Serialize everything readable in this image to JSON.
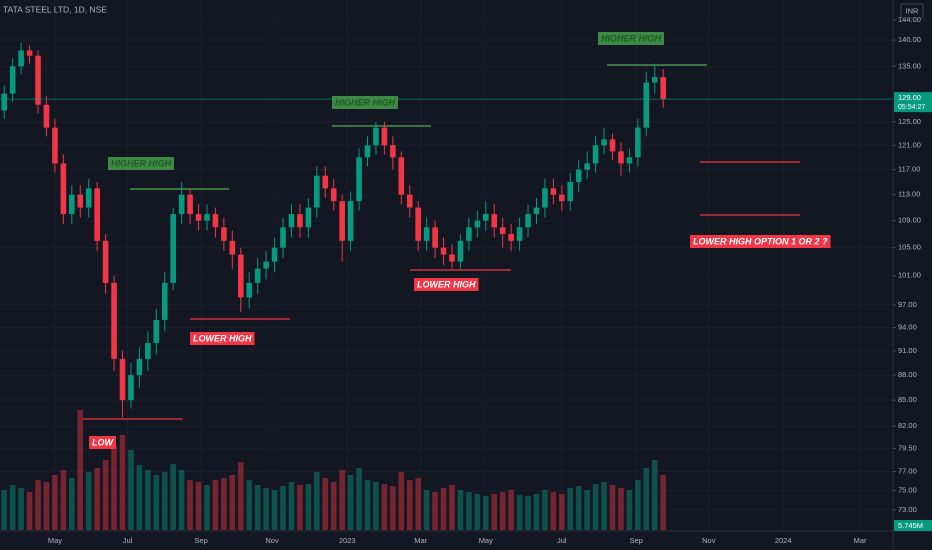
{
  "chart_data": {
    "type": "candlestick",
    "title": "TATA STEEL LTD, 1D, NSE",
    "currency": "INR",
    "price_label": "129.00",
    "countdown": "05:54:27",
    "volume_label": "5.745M",
    "log_scale": true,
    "grid": true,
    "up_color": "#089981",
    "down_color": "#f23645",
    "ylim": [
      71,
      148
    ],
    "yticks": [
      {
        "value": 144,
        "label": "144.00"
      },
      {
        "value": 140,
        "label": "140.00"
      },
      {
        "value": 135,
        "label": "135.00"
      },
      {
        "value": 125,
        "label": "125.00"
      },
      {
        "value": 121,
        "label": "121.00"
      },
      {
        "value": 117,
        "label": "117.00"
      },
      {
        "value": 113,
        "label": "113.00"
      },
      {
        "value": 109,
        "label": "109.00"
      },
      {
        "value": 105,
        "label": "105.00"
      },
      {
        "value": 101,
        "label": "101.00"
      },
      {
        "value": 97,
        "label": "97.00"
      },
      {
        "value": 94,
        "label": "94.00"
      },
      {
        "value": 91,
        "label": "91.00"
      },
      {
        "value": 88,
        "label": "88.00"
      },
      {
        "value": 85,
        "label": "85.00"
      },
      {
        "value": 82,
        "label": "82.00"
      },
      {
        "value": 79.5,
        "label": "79.50"
      },
      {
        "value": 77,
        "label": "77.00"
      },
      {
        "value": 75,
        "label": "75.00"
      },
      {
        "value": 73,
        "label": "73.00"
      }
    ],
    "xlim": [
      0,
      105.7
    ],
    "xticks": [
      {
        "value": 6.5,
        "label": "May"
      },
      {
        "value": 15.1,
        "label": "Jul"
      },
      {
        "value": 23.8,
        "label": "Sep"
      },
      {
        "value": 32.2,
        "label": "Nov"
      },
      {
        "value": 41.1,
        "label": "2023"
      },
      {
        "value": 49.8,
        "label": "Mar"
      },
      {
        "value": 57.5,
        "label": "May"
      },
      {
        "value": 66.5,
        "label": "Jul"
      },
      {
        "value": 75.3,
        "label": "Sep"
      },
      {
        "value": 83.9,
        "label": "Nov"
      },
      {
        "value": 92.7,
        "label": "2024"
      },
      {
        "value": 101.8,
        "label": "Mar"
      }
    ],
    "open": [
      127,
      130,
      135,
      138,
      137,
      128,
      124,
      118,
      110,
      113,
      111,
      114,
      106,
      100,
      90,
      85,
      88,
      90,
      92,
      95,
      100,
      110,
      113,
      110,
      109,
      110,
      108,
      106,
      104,
      98,
      100,
      102,
      103,
      105,
      108,
      110,
      108,
      111,
      116,
      114,
      112,
      106,
      112,
      119,
      121,
      124,
      121,
      119,
      113,
      111,
      106,
      108,
      105,
      104,
      103,
      106,
      108,
      109,
      110,
      108,
      107,
      106,
      108,
      110,
      111,
      114,
      113,
      112,
      115,
      117,
      118,
      121,
      122,
      120,
      118,
      119,
      124,
      132,
      133
    ],
    "high": [
      131.5,
      136.5,
      139.5,
      139,
      138,
      129.5,
      125.5,
      119.5,
      114.5,
      114.5,
      115.5,
      115,
      107,
      101,
      91,
      89.5,
      91.5,
      93.5,
      96.5,
      101.5,
      111,
      115,
      114,
      111.5,
      111.5,
      111,
      109.5,
      107.5,
      105,
      101.5,
      103.5,
      104.5,
      106.5,
      109.5,
      111.5,
      111.5,
      112.5,
      117.5,
      117.5,
      115.5,
      113,
      113.5,
      120.5,
      122.5,
      125,
      125,
      122.5,
      120,
      114.5,
      112,
      109.5,
      109,
      106.5,
      105.5,
      107,
      109.5,
      110.5,
      112,
      111.5,
      109.5,
      108.5,
      109.5,
      111.5,
      112.5,
      115.5,
      115.5,
      114.5,
      116.5,
      118.5,
      120,
      122.5,
      124,
      123,
      121.5,
      120.5,
      125.5,
      134,
      135.5,
      134.5
    ],
    "low": [
      125.5,
      128.5,
      133.5,
      135.5,
      126.5,
      122.5,
      116.5,
      108.5,
      108.5,
      109.5,
      109.5,
      104.5,
      98.5,
      88.5,
      83,
      84,
      86.5,
      88.5,
      90.5,
      93.5,
      99,
      108.5,
      108.5,
      107.5,
      107.5,
      106.5,
      104.5,
      102,
      96,
      96.5,
      98.5,
      100.5,
      101.5,
      103.5,
      106.5,
      106.5,
      106.5,
      109.5,
      112.5,
      110.5,
      103,
      104.5,
      110.5,
      117.5,
      119.5,
      119.5,
      117,
      111.5,
      109.5,
      104.5,
      104.5,
      103.5,
      102.5,
      102,
      102,
      104.5,
      106.5,
      107.5,
      106.5,
      105,
      104.5,
      104.5,
      106.5,
      108.5,
      109.5,
      111.5,
      110.5,
      110.5,
      113.5,
      115.5,
      116.5,
      119.5,
      118.5,
      116,
      116.5,
      117.5,
      122.5,
      130,
      127.5
    ],
    "close": [
      130,
      135,
      138,
      137,
      128,
      124,
      118,
      110,
      113,
      111,
      114,
      106,
      100,
      90,
      85,
      88,
      90,
      92,
      95,
      100,
      110,
      113,
      110,
      109,
      110,
      108,
      106,
      104,
      98,
      100,
      102,
      103,
      105,
      108,
      110,
      108,
      111,
      116,
      114,
      112,
      106,
      112,
      119,
      121,
      124,
      121,
      119,
      113,
      111,
      106,
      108,
      105,
      104,
      103,
      106,
      108,
      109,
      110,
      108,
      107,
      106,
      108,
      110,
      111,
      114,
      113,
      112,
      115,
      117,
      118,
      121,
      122,
      120,
      118,
      119,
      124,
      132,
      133,
      129
    ],
    "volume": [
      40,
      45,
      42,
      38,
      50,
      48,
      55,
      60,
      52,
      120,
      58,
      62,
      70,
      85,
      95,
      80,
      65,
      60,
      55,
      58,
      66,
      60,
      50,
      48,
      45,
      50,
      52,
      55,
      68,
      50,
      45,
      42,
      40,
      44,
      48,
      45,
      46,
      58,
      52,
      48,
      60,
      55,
      62,
      50,
      48,
      46,
      44,
      58,
      50,
      52,
      40,
      38,
      42,
      45,
      40,
      38,
      36,
      34,
      36,
      38,
      40,
      35,
      34,
      36,
      40,
      38,
      36,
      42,
      44,
      40,
      46,
      48,
      45,
      42,
      40,
      50,
      62,
      70,
      55
    ],
    "annotations": [
      {
        "text": "HIGHER HIGH",
        "kind": "green"
      },
      {
        "text": "HIGHER HIGH",
        "kind": "green"
      },
      {
        "text": "HIGHER HIGH",
        "kind": "green"
      },
      {
        "text": "LOW",
        "kind": "red"
      },
      {
        "text": "LOWER HIGH",
        "kind": "red"
      },
      {
        "text": "LOWER HIGH",
        "kind": "red"
      },
      {
        "text": "LOWER HIGH OPTION 1 OR 2 ?",
        "kind": "red"
      }
    ]
  }
}
